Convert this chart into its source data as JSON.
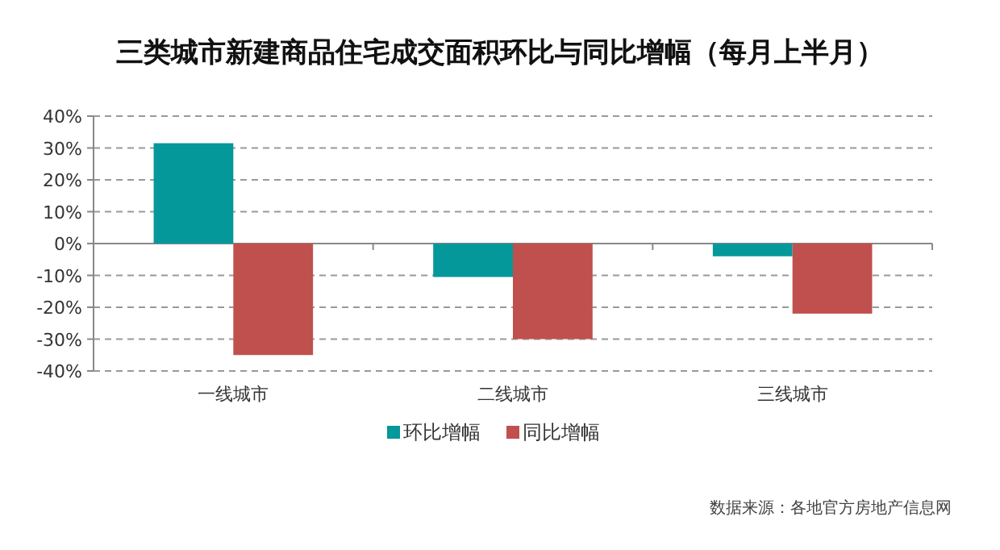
{
  "chart_data": {
    "type": "bar",
    "title": "三类城市新建商品住宅成交面积环比与同比增幅（每月上半月）",
    "categories": [
      "一线城市",
      "二线城市",
      "三线城市"
    ],
    "series": [
      {
        "name": "环比增幅",
        "color": "#05989b",
        "values": [
          31.5,
          -10.5,
          -4
        ]
      },
      {
        "name": "同比增幅",
        "color": "#c0504d",
        "values": [
          -35,
          -30,
          -22
        ]
      }
    ],
    "ylim": [
      -40,
      40
    ],
    "yticks": [
      {
        "value": -40,
        "label": "-40%"
      },
      {
        "value": -30,
        "label": "-30%"
      },
      {
        "value": -20,
        "label": "-20%"
      },
      {
        "value": -10,
        "label": "-10%"
      },
      {
        "value": 0,
        "label": "0%"
      },
      {
        "value": 10,
        "label": "10%"
      },
      {
        "value": 20,
        "label": "20%"
      },
      {
        "value": 30,
        "label": "30%"
      },
      {
        "value": 40,
        "label": "40%"
      }
    ],
    "grid": "y",
    "legend": "bottom",
    "annotations": [
      "数据来源：各地官方房地产信息网"
    ]
  }
}
